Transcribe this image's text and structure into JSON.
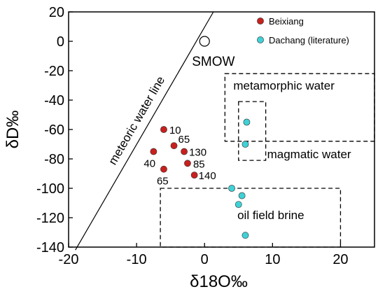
{
  "chart_data": {
    "type": "scatter",
    "xlabel": "δ18O‰",
    "ylabel": "δD‰",
    "xlim": [
      -20,
      25
    ],
    "ylim": [
      -140,
      20
    ],
    "x_ticks": [
      -20,
      -10,
      0,
      10,
      20
    ],
    "y_ticks": [
      20,
      0,
      -20,
      -40,
      -60,
      -80,
      -100,
      -120,
      -140
    ],
    "grid": false,
    "legend_position": "top-right",
    "series": [
      {
        "name": "Beixiang",
        "color": "#c8201e",
        "points": [
          {
            "x": -6.0,
            "y": -60,
            "label": "10"
          },
          {
            "x": -4.5,
            "y": -71,
            "label": "65"
          },
          {
            "x": -3.0,
            "y": -75,
            "label": "130"
          },
          {
            "x": -7.5,
            "y": -75,
            "label": "40"
          },
          {
            "x": -2.5,
            "y": -83,
            "label": "85"
          },
          {
            "x": -6.0,
            "y": -87,
            "label": "65"
          },
          {
            "x": -1.5,
            "y": -91,
            "label": "140"
          }
        ]
      },
      {
        "name": "Dachang (literature)",
        "color": "#3fd1d6",
        "points": [
          {
            "x": 6.2,
            "y": -55
          },
          {
            "x": 6.0,
            "y": -70
          },
          {
            "x": 4.0,
            "y": -100
          },
          {
            "x": 5.5,
            "y": -105
          },
          {
            "x": 5.0,
            "y": -111
          },
          {
            "x": 6.0,
            "y": -132
          }
        ]
      }
    ],
    "meteoric_water_line": {
      "label": "meteoric water line",
      "from": {
        "x": -19,
        "y": -142
      },
      "to": {
        "x": 1.3,
        "y": 20
      }
    },
    "smow": {
      "label": "SMOW",
      "x": 0,
      "y": 0
    },
    "zones": [
      {
        "label": "metamorphic water",
        "x": [
          3,
          25
        ],
        "y": [
          -68,
          -22
        ]
      },
      {
        "label": "magmatic water",
        "x": [
          5,
          9
        ],
        "y": [
          -81,
          -41
        ]
      },
      {
        "label": "oil field brine",
        "x": [
          -6.5,
          20
        ],
        "y": [
          -140,
          -100
        ]
      }
    ]
  }
}
